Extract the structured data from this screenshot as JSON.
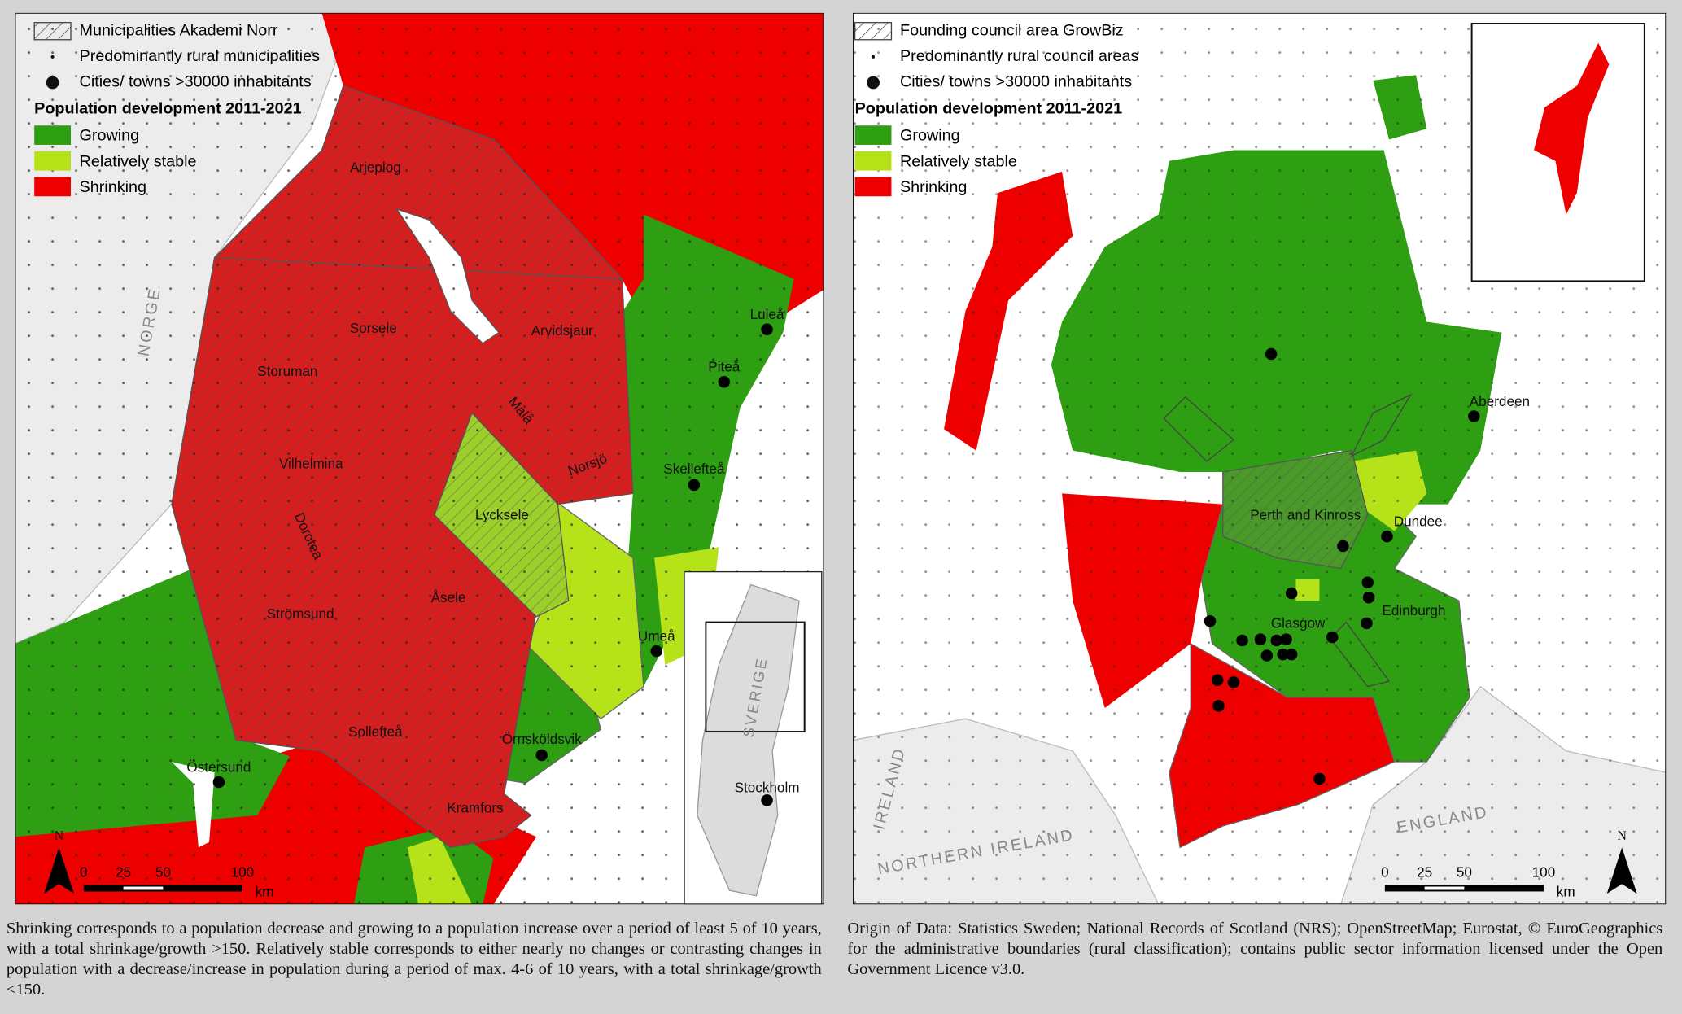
{
  "left_map": {
    "legend": {
      "hatched": "Municipalities Akademi Norr",
      "dots": "Predominantly rural municipalities",
      "cities": "Cities/ towns >30000 inhabitants",
      "title": "Population development 2011-2021",
      "classes": [
        "Growing",
        "Relatively stable",
        "Shrinking"
      ]
    },
    "countries": [
      "NORGE",
      "SVERIGE"
    ],
    "places": [
      "Arjeplog",
      "Arvidsjaur",
      "Sorsele",
      "Storuman",
      "Malå",
      "Norsjö",
      "Vilhelmina",
      "Lycksele",
      "Dorotea",
      "Åsele",
      "Strömsund",
      "Sollefteå",
      "Kramfors",
      "Östersund",
      "Örnsköldsvik",
      "Umeå",
      "Skellefteå",
      "Piteå",
      "Luleå",
      "Stockholm"
    ],
    "scale": [
      "0",
      "25",
      "50",
      "100",
      "km"
    ],
    "north": "N"
  },
  "right_map": {
    "legend": {
      "hatched": "Founding council area GrowBiz",
      "dots": "Predominantly rural council areas",
      "cities": "Cities/ towns >30000 inhabitants",
      "title": "Population development 2011-2021",
      "classes": [
        "Growing",
        "Relatively stable",
        "Shrinking"
      ]
    },
    "countries": [
      "IRELAND",
      "NORTHERN IRELAND",
      "ENGLAND"
    ],
    "places": [
      "Aberdeen",
      "Perth and Kinross",
      "Dundee",
      "Edinburgh",
      "Glasgow"
    ],
    "scale": [
      "0",
      "25",
      "50",
      "100",
      "km"
    ],
    "north": "N"
  },
  "captions": {
    "left": "Shrinking corresponds to a population decrease and growing to a population increase over a period of least 5 of 10 years, with a total shrinkage/growth >150. Relatively stable corresponds to either nearly no changes or contrasting changes in population with a decrease/increase in population during a period of max. 4-6 of 10 years, with a total shrinkage/growth <150.",
    "right": "Origin of Data: Statistics Sweden; National Records of Scotland (NRS); OpenStreetMap; Eurostat, © EuroGeographics for the administrative boundaries (rural classification); contains public sector information licensed under the Open Government Licence v3.0."
  }
}
